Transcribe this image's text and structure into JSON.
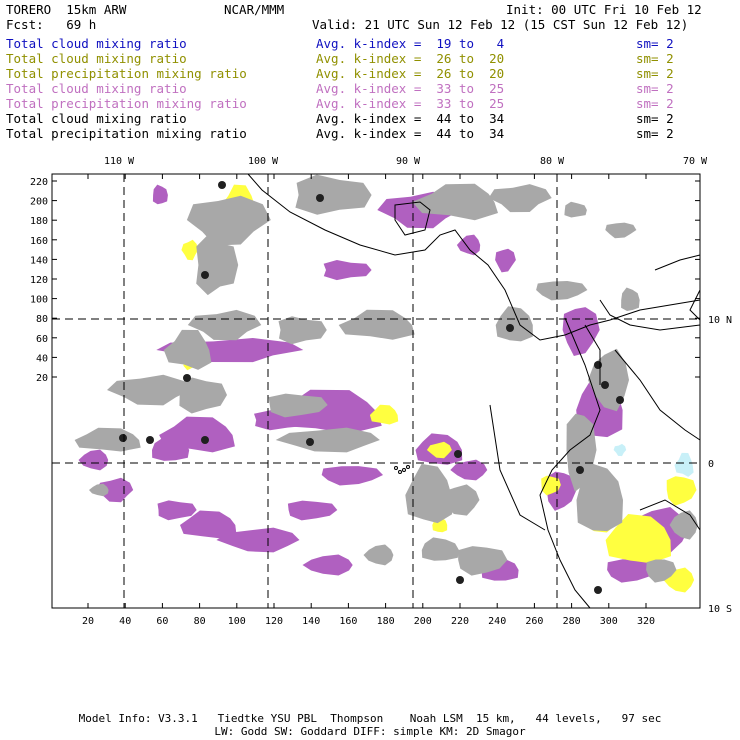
{
  "header": {
    "model": "TORERO  15km ARW",
    "center": "NCAR/MMM",
    "init": "Init: 00 UTC Fri 10 Feb 12",
    "fcst": "Fcst:   69 h",
    "valid": "Valid: 21 UTC Sun 12 Feb 12 (15 CST Sun 12 Feb 12)"
  },
  "fields": [
    {
      "name": "Total cloud mixing ratio",
      "index": "Avg. k-index =  19 to   4",
      "sm": "sm= 2",
      "color": "#1010c0"
    },
    {
      "name": "Total cloud mixing ratio",
      "index": "Avg. k-index =  26 to  20",
      "sm": "sm= 2",
      "color": "#909000"
    },
    {
      "name": "Total precipitation mixing ratio",
      "index": "Avg. k-index =  26 to  20",
      "sm": "sm= 2",
      "color": "#909000"
    },
    {
      "name": "Total cloud mixing ratio",
      "index": "Avg. k-index =  33 to  25",
      "sm": "sm= 2",
      "color": "#c070c0"
    },
    {
      "name": "Total precipitation mixing ratio",
      "index": "Avg. k-index =  33 to  25",
      "sm": "sm= 2",
      "color": "#c070c0"
    },
    {
      "name": "Total cloud mixing ratio",
      "index": "Avg. k-index =  44 to  34",
      "sm": "sm= 2",
      "color": "#000000"
    },
    {
      "name": "Total precipitation mixing ratio",
      "index": "Avg. k-index =  44 to  34",
      "sm": "sm= 2",
      "color": "#000000"
    }
  ],
  "map": {
    "lon_labels": [
      "110 W",
      "100 W",
      "90 W",
      "80 W",
      "70 W"
    ],
    "lat_labels": [
      "10 N",
      "0",
      "10 S"
    ],
    "y_ticks": [
      "220",
      "200",
      "180",
      "160",
      "140",
      "120",
      "100",
      "80",
      "60",
      "40",
      "20"
    ],
    "x_ticks": [
      "20",
      "40",
      "60",
      "80",
      "100",
      "120",
      "140",
      "160",
      "180",
      "200",
      "220",
      "240",
      "260",
      "280",
      "300",
      "320"
    ],
    "colors": {
      "cloud_low": "#c8f0f8",
      "cloud_mid": "#ffff40",
      "cloud_upper": "#b060c0",
      "cloud_high": "#a8a8a8",
      "core": "#202020",
      "coast": "#000000"
    }
  },
  "footer": {
    "line1": "Model Info: V3.3.1   Tiedtke YSU PBL  Thompson    Noah LSM  15 km,   44 levels,   97 sec",
    "line2": "LW: Godd SW: Goddard DIFF: simple KM: 2D Smagor"
  }
}
